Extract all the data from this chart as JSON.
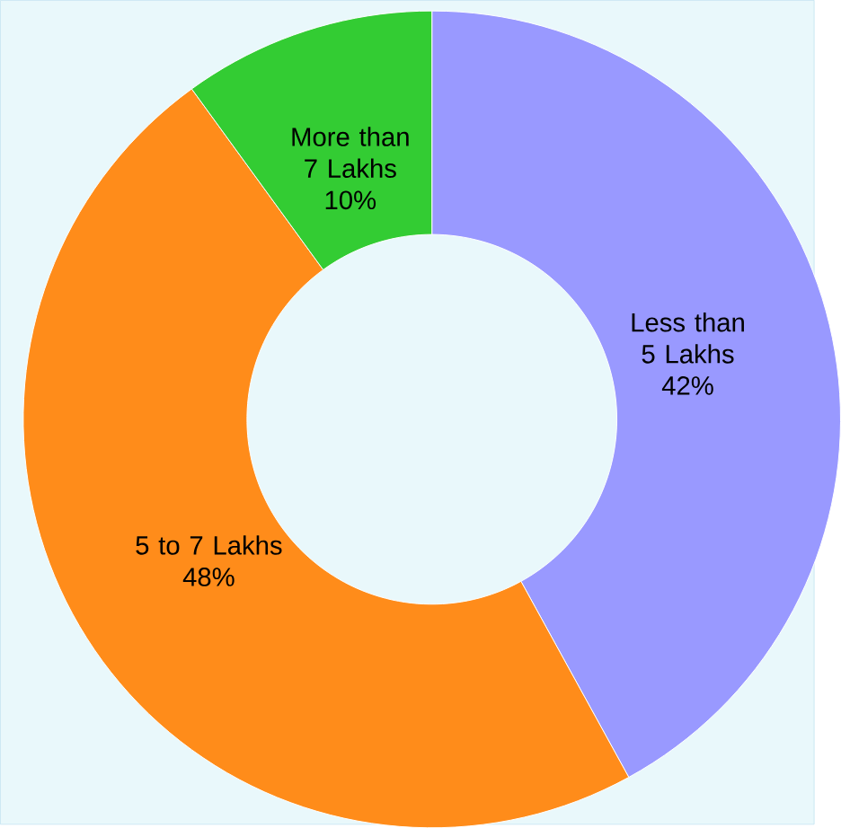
{
  "chart_data": {
    "type": "donut",
    "categories": [
      "Less than 5 Lakhs",
      "5 to 7 Lakhs",
      "More than 7 Lakhs"
    ],
    "values": [
      42,
      48,
      10
    ],
    "value_labels": [
      "42%",
      "48%",
      "10%"
    ],
    "colors": [
      "#9999ff",
      "#ff8c1a",
      "#33cc33"
    ]
  }
}
